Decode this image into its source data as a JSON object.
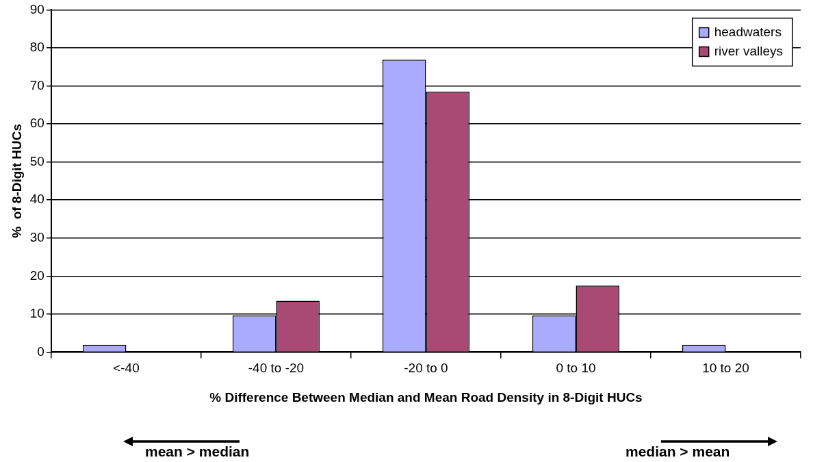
{
  "chart_data": {
    "type": "bar",
    "categories": [
      "<-40",
      "-40 to -20",
      "-20 to 0",
      "0 to 10",
      "10 to 20"
    ],
    "series": [
      {
        "name": "headwaters",
        "color": "#aaaaff",
        "values": [
          1.9,
          9.6,
          76.9,
          9.6,
          1.9
        ]
      },
      {
        "name": "river valleys",
        "color": "#a94a74",
        "values": [
          0,
          13.5,
          68.5,
          17.5,
          0
        ]
      }
    ],
    "xlabel": "% Difference Between Median and Mean Road Density in 8-Digit HUCs",
    "ylabel": "%  of 8-Digit HUCs",
    "ylim": [
      0,
      90
    ],
    "yticks": [
      0,
      10,
      20,
      30,
      40,
      50,
      60,
      70,
      80,
      90
    ],
    "grid": "y",
    "legend": "top right",
    "annotations": [
      "mean > median",
      "median > mean"
    ]
  }
}
